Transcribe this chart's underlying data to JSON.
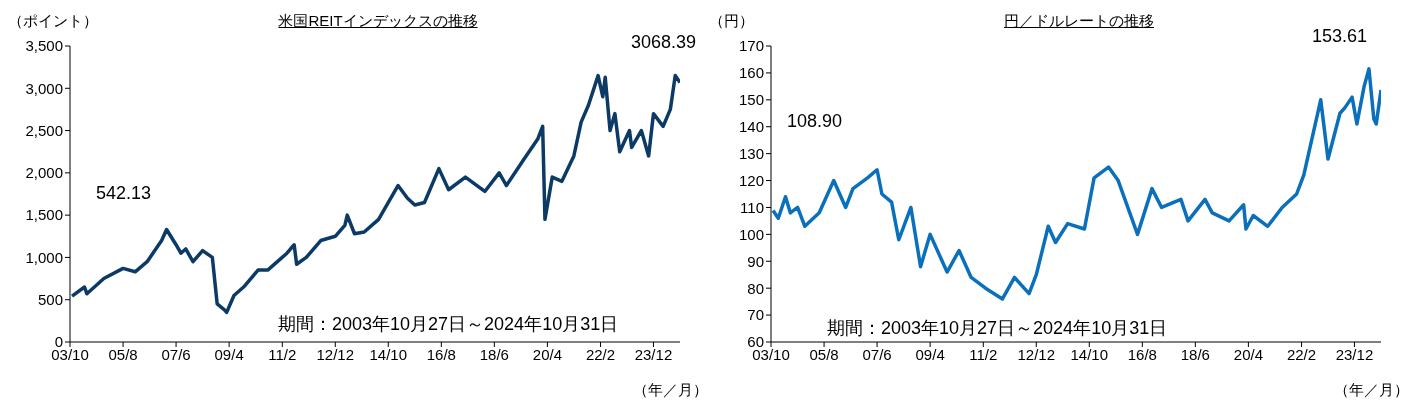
{
  "chart_data": [
    {
      "type": "line",
      "title": "米国REITインデックスの推移",
      "ylabel": "（ポイント）",
      "xlabel": "（年／月）",
      "annotations": [
        "542.13",
        "3068.39",
        "期間：2003年10月27日～2024年10月31日"
      ],
      "x": [
        "2003-10-27",
        "2004-04",
        "2004-05",
        "2004-12",
        "2005-08",
        "2006-01",
        "2006-06",
        "2006-12",
        "2007-02",
        "2007-06",
        "2007-08",
        "2007-10",
        "2008-01",
        "2008-05",
        "2008-09",
        "2008-11",
        "2009-02",
        "2009-03",
        "2009-06",
        "2009-10",
        "2010-04",
        "2010-08",
        "2010-12",
        "2011-04",
        "2011-07",
        "2011-08",
        "2011-12",
        "2012-06",
        "2012-12",
        "2013-04",
        "2013-05",
        "2013-08",
        "2013-12",
        "2014-06",
        "2014-09",
        "2015-02",
        "2015-06",
        "2015-09",
        "2016-01",
        "2016-07",
        "2016-11",
        "2017-06",
        "2018-02",
        "2018-08",
        "2018-11",
        "2019-06",
        "2019-12",
        "2020-02",
        "2020-03",
        "2020-06",
        "2020-10",
        "2021-03",
        "2021-06",
        "2021-09",
        "2022-01",
        "2022-03",
        "2022-04",
        "2022-06",
        "2022-08",
        "2022-10",
        "2023-02",
        "2023-03",
        "2023-07",
        "2023-10",
        "2023-12",
        "2024-04",
        "2024-07",
        "2024-09",
        "2024-10-31"
      ],
      "series": [
        {
          "color": "#0b3a66",
          "values": [
            542.13,
            650,
            570,
            750,
            870,
            830,
            950,
            1200,
            1330,
            1150,
            1050,
            1100,
            950,
            1080,
            1000,
            450,
            380,
            350,
            550,
            650,
            850,
            850,
            950,
            1050,
            1150,
            920,
            1000,
            1200,
            1250,
            1380,
            1500,
            1280,
            1300,
            1450,
            1600,
            1850,
            1700,
            1620,
            1650,
            2050,
            1800,
            1950,
            1780,
            2000,
            1850,
            2150,
            2400,
            2550,
            1450,
            1950,
            1900,
            2200,
            2600,
            2800,
            3150,
            2900,
            3130,
            2500,
            2700,
            2250,
            2500,
            2300,
            2500,
            2200,
            2700,
            2550,
            2750,
            3150,
            3068.39
          ]
        }
      ],
      "xlim": [
        "2003-10",
        "2024-10-31"
      ],
      "xticks": [
        {
          "value": "2003-10",
          "label": "03/10"
        },
        {
          "value": "2005-08",
          "label": "05/8"
        },
        {
          "value": "2007-06",
          "label": "07/6"
        },
        {
          "value": "2009-04",
          "label": "09/4"
        },
        {
          "value": "2011-02",
          "label": "11/2"
        },
        {
          "value": "2012-12",
          "label": "12/12"
        },
        {
          "value": "2014-10",
          "label": "14/10"
        },
        {
          "value": "2016-08",
          "label": "16/8"
        },
        {
          "value": "2018-06",
          "label": "18/6"
        },
        {
          "value": "2020-04",
          "label": "20/4"
        },
        {
          "value": "2022-02",
          "label": "22/2"
        },
        {
          "value": "2023-12",
          "label": "23/12"
        }
      ],
      "ylim": [
        0,
        3500
      ],
      "yticks": [
        0,
        500,
        {
          "value": 1000,
          "label": "1,000"
        },
        {
          "value": 1500,
          "label": "1,500"
        },
        {
          "value": 2000,
          "label": "2,000"
        },
        {
          "value": 2500,
          "label": "2,500"
        },
        {
          "value": 3000,
          "label": "3,000"
        },
        {
          "value": 3500,
          "label": "3,500"
        }
      ]
    },
    {
      "type": "line",
      "title": "円／ドルレートの推移",
      "ylabel": "（円）",
      "xlabel": "（年／月）",
      "annotations": [
        "108.90",
        "153.61",
        "期間：2003年10月27日～2024年10月31日"
      ],
      "x": [
        "2003-10-27",
        "2004-01",
        "2004-04",
        "2004-06",
        "2004-09",
        "2004-12",
        "2005-06",
        "2005-12",
        "2006-05",
        "2006-08",
        "2007-02",
        "2007-06",
        "2007-08",
        "2007-12",
        "2008-03",
        "2008-08",
        "2008-12",
        "2009-04",
        "2009-11",
        "2010-04",
        "2010-09",
        "2011-03",
        "2011-10",
        "2012-03",
        "2012-09",
        "2012-12",
        "2013-05",
        "2013-08",
        "2014-01",
        "2014-08",
        "2014-12",
        "2015-06",
        "2015-10",
        "2016-06",
        "2016-12",
        "2017-04",
        "2017-12",
        "2018-03",
        "2018-10",
        "2019-01",
        "2019-08",
        "2020-02",
        "2020-03",
        "2020-06",
        "2020-12",
        "2021-06",
        "2021-12",
        "2022-03",
        "2022-10",
        "2023-01",
        "2023-06",
        "2023-08",
        "2023-11",
        "2024-01",
        "2024-04",
        "2024-06",
        "2024-08",
        "2024-09",
        "2024-10-31"
      ],
      "series": [
        {
          "color": "#0a70bb",
          "values": [
            108.9,
            106,
            114,
            108,
            110,
            103,
            108,
            120,
            110,
            117,
            121,
            124,
            115,
            112,
            98,
            110,
            88,
            100,
            86,
            94,
            84,
            80,
            76,
            84,
            78,
            85,
            103,
            97,
            104,
            102,
            121,
            125,
            120,
            100,
            117,
            110,
            113,
            105,
            113,
            108,
            105,
            111,
            102,
            107,
            103,
            110,
            115,
            122,
            150,
            128,
            145,
            147,
            151,
            141,
            155,
            161.5,
            143,
            141,
            153.61
          ]
        }
      ],
      "xlim": [
        "2003-10",
        "2024-10-31"
      ],
      "xticks": [
        {
          "value": "2003-10",
          "label": "03/10"
        },
        {
          "value": "2005-08",
          "label": "05/8"
        },
        {
          "value": "2007-06",
          "label": "07/6"
        },
        {
          "value": "2009-04",
          "label": "09/4"
        },
        {
          "value": "2011-02",
          "label": "11/2"
        },
        {
          "value": "2012-12",
          "label": "12/12"
        },
        {
          "value": "2014-10",
          "label": "14/10"
        },
        {
          "value": "2016-08",
          "label": "16/8"
        },
        {
          "value": "2018-06",
          "label": "18/6"
        },
        {
          "value": "2020-04",
          "label": "20/4"
        },
        {
          "value": "2022-02",
          "label": "22/2"
        },
        {
          "value": "2023-12",
          "label": "23/12"
        }
      ],
      "ylim": [
        60,
        170
      ],
      "yticks": [
        60,
        70,
        80,
        90,
        100,
        110,
        120,
        130,
        140,
        150,
        160,
        170
      ]
    }
  ]
}
